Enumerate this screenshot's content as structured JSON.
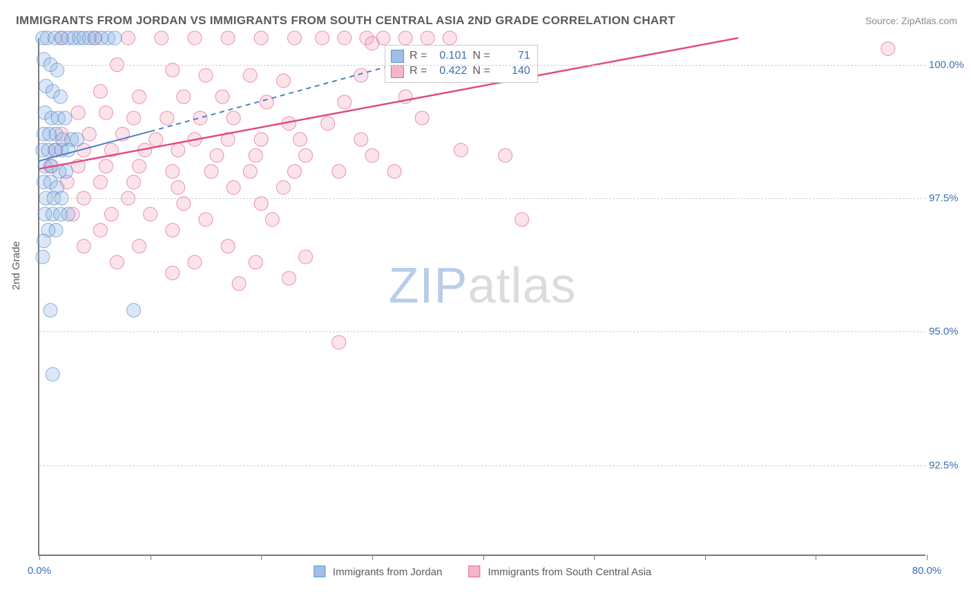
{
  "title": "IMMIGRANTS FROM JORDAN VS IMMIGRANTS FROM SOUTH CENTRAL ASIA 2ND GRADE CORRELATION CHART",
  "source_label": "Source: ZipAtlas.com",
  "ylabel": "2nd Grade",
  "watermark_a": "ZIP",
  "watermark_b": "atlas",
  "chart": {
    "type": "scatter",
    "background_color": "#ffffff",
    "grid_color": "#d0d0d0",
    "axis_color": "#797979",
    "tick_label_color": "#3d6db5",
    "xlim": [
      0,
      80
    ],
    "ylim": [
      90.8,
      100.5
    ],
    "xticks": [
      0,
      10,
      20,
      30,
      40,
      50,
      60,
      70,
      80
    ],
    "xtick_labels": {
      "0": "0.0%",
      "80": "80.0%"
    },
    "yticks": [
      92.5,
      95.0,
      97.5,
      100.0
    ],
    "ytick_labels": [
      "92.5%",
      "95.0%",
      "97.5%",
      "100.0%"
    ],
    "marker_radius": 10,
    "marker_opacity": 0.32,
    "series": [
      {
        "name": "Immigrants from Jordan",
        "key": "jordan",
        "fill": "#8fb4e3",
        "stroke": "#4a7fc4",
        "R": "0.101",
        "N": "71",
        "trend": {
          "x1": 0,
          "y1": 98.2,
          "x2": 10,
          "y2": 98.75,
          "dash_x2": 32,
          "dash_y2": 100.0,
          "width": 2
        },
        "points": [
          [
            0.3,
            100.5
          ],
          [
            0.7,
            100.5
          ],
          [
            1.4,
            100.5
          ],
          [
            2.0,
            100.5
          ],
          [
            2.6,
            100.5
          ],
          [
            3.1,
            100.5
          ],
          [
            3.6,
            100.5
          ],
          [
            4.0,
            100.5
          ],
          [
            4.5,
            100.5
          ],
          [
            5.0,
            100.5
          ],
          [
            5.6,
            100.5
          ],
          [
            6.2,
            100.5
          ],
          [
            6.8,
            100.5
          ],
          [
            0.4,
            100.1
          ],
          [
            1.0,
            100.0
          ],
          [
            1.6,
            99.9
          ],
          [
            0.6,
            99.6
          ],
          [
            1.2,
            99.5
          ],
          [
            1.9,
            99.4
          ],
          [
            0.5,
            99.1
          ],
          [
            1.1,
            99.0
          ],
          [
            1.7,
            99.0
          ],
          [
            2.3,
            99.0
          ],
          [
            0.4,
            98.7
          ],
          [
            0.9,
            98.7
          ],
          [
            1.5,
            98.7
          ],
          [
            2.1,
            98.6
          ],
          [
            2.9,
            98.6
          ],
          [
            3.4,
            98.6
          ],
          [
            0.3,
            98.4
          ],
          [
            0.8,
            98.4
          ],
          [
            1.4,
            98.4
          ],
          [
            2.0,
            98.4
          ],
          [
            2.6,
            98.4
          ],
          [
            0.5,
            98.1
          ],
          [
            1.1,
            98.1
          ],
          [
            1.8,
            98.0
          ],
          [
            2.4,
            98.0
          ],
          [
            0.4,
            97.8
          ],
          [
            1.0,
            97.8
          ],
          [
            1.6,
            97.7
          ],
          [
            0.6,
            97.5
          ],
          [
            1.3,
            97.5
          ],
          [
            2.0,
            97.5
          ],
          [
            0.5,
            97.2
          ],
          [
            1.2,
            97.2
          ],
          [
            1.9,
            97.2
          ],
          [
            2.6,
            97.2
          ],
          [
            0.8,
            96.9
          ],
          [
            1.5,
            96.9
          ],
          [
            0.4,
            96.7
          ],
          [
            0.3,
            96.4
          ],
          [
            1.0,
            95.4
          ],
          [
            8.5,
            95.4
          ],
          [
            1.2,
            94.2
          ]
        ]
      },
      {
        "name": "Immigrants from South Central Asia",
        "key": "sca",
        "fill": "#f4a9bf",
        "stroke": "#e04b7e",
        "R": "0.422",
        "N": "140",
        "trend": {
          "x1": 0,
          "y1": 98.05,
          "x2": 63,
          "y2": 100.5,
          "width": 2.5
        },
        "points": [
          [
            2.0,
            100.5
          ],
          [
            5.0,
            100.5
          ],
          [
            8.0,
            100.5
          ],
          [
            11.0,
            100.5
          ],
          [
            14.0,
            100.5
          ],
          [
            17.0,
            100.5
          ],
          [
            20.0,
            100.5
          ],
          [
            23.0,
            100.5
          ],
          [
            25.5,
            100.5
          ],
          [
            27.5,
            100.5
          ],
          [
            29.5,
            100.5
          ],
          [
            31.0,
            100.5
          ],
          [
            33.0,
            100.5
          ],
          [
            35.0,
            100.5
          ],
          [
            37.0,
            100.5
          ],
          [
            30.0,
            100.4
          ],
          [
            76.5,
            100.3
          ],
          [
            7.0,
            100.0
          ],
          [
            12.0,
            99.9
          ],
          [
            15.0,
            99.8
          ],
          [
            19.0,
            99.8
          ],
          [
            22.0,
            99.7
          ],
          [
            29.0,
            99.8
          ],
          [
            5.5,
            99.5
          ],
          [
            9.0,
            99.4
          ],
          [
            13.0,
            99.4
          ],
          [
            16.5,
            99.4
          ],
          [
            20.5,
            99.3
          ],
          [
            27.5,
            99.3
          ],
          [
            33.0,
            99.4
          ],
          [
            3.5,
            99.1
          ],
          [
            6.0,
            99.1
          ],
          [
            8.5,
            99.0
          ],
          [
            11.5,
            99.0
          ],
          [
            14.5,
            99.0
          ],
          [
            17.5,
            99.0
          ],
          [
            22.5,
            98.9
          ],
          [
            26.0,
            98.9
          ],
          [
            34.5,
            99.0
          ],
          [
            2.0,
            98.7
          ],
          [
            4.5,
            98.7
          ],
          [
            7.5,
            98.7
          ],
          [
            10.5,
            98.6
          ],
          [
            14.0,
            98.6
          ],
          [
            17.0,
            98.6
          ],
          [
            20.0,
            98.6
          ],
          [
            23.5,
            98.6
          ],
          [
            29.0,
            98.6
          ],
          [
            1.5,
            98.4
          ],
          [
            4.0,
            98.4
          ],
          [
            6.5,
            98.4
          ],
          [
            9.5,
            98.4
          ],
          [
            12.5,
            98.4
          ],
          [
            16.0,
            98.3
          ],
          [
            19.5,
            98.3
          ],
          [
            24.0,
            98.3
          ],
          [
            30.0,
            98.3
          ],
          [
            38.0,
            98.4
          ],
          [
            42.0,
            98.3
          ],
          [
            1.0,
            98.1
          ],
          [
            3.5,
            98.1
          ],
          [
            6.0,
            98.1
          ],
          [
            9.0,
            98.1
          ],
          [
            12.0,
            98.0
          ],
          [
            15.5,
            98.0
          ],
          [
            19.0,
            98.0
          ],
          [
            23.0,
            98.0
          ],
          [
            27.0,
            98.0
          ],
          [
            32.0,
            98.0
          ],
          [
            2.5,
            97.8
          ],
          [
            5.5,
            97.8
          ],
          [
            8.5,
            97.8
          ],
          [
            12.5,
            97.7
          ],
          [
            17.5,
            97.7
          ],
          [
            22.0,
            97.7
          ],
          [
            4.0,
            97.5
          ],
          [
            8.0,
            97.5
          ],
          [
            13.0,
            97.4
          ],
          [
            20.0,
            97.4
          ],
          [
            3.0,
            97.2
          ],
          [
            6.5,
            97.2
          ],
          [
            10.0,
            97.2
          ],
          [
            15.0,
            97.1
          ],
          [
            21.0,
            97.1
          ],
          [
            43.5,
            97.1
          ],
          [
            5.5,
            96.9
          ],
          [
            12.0,
            96.9
          ],
          [
            4.0,
            96.6
          ],
          [
            9.0,
            96.6
          ],
          [
            17.0,
            96.6
          ],
          [
            7.0,
            96.3
          ],
          [
            14.0,
            96.3
          ],
          [
            19.5,
            96.3
          ],
          [
            24.0,
            96.4
          ],
          [
            12.0,
            96.1
          ],
          [
            22.5,
            96.0
          ],
          [
            18.0,
            95.9
          ],
          [
            27.0,
            94.8
          ]
        ]
      }
    ],
    "legend_bottom": [
      {
        "swatch_fill": "#8fb4e3",
        "swatch_stroke": "#4a7fc4",
        "label": "Immigrants from Jordan"
      },
      {
        "swatch_fill": "#f4a9bf",
        "swatch_stroke": "#e04b7e",
        "label": "Immigrants from South Central Asia"
      }
    ]
  }
}
